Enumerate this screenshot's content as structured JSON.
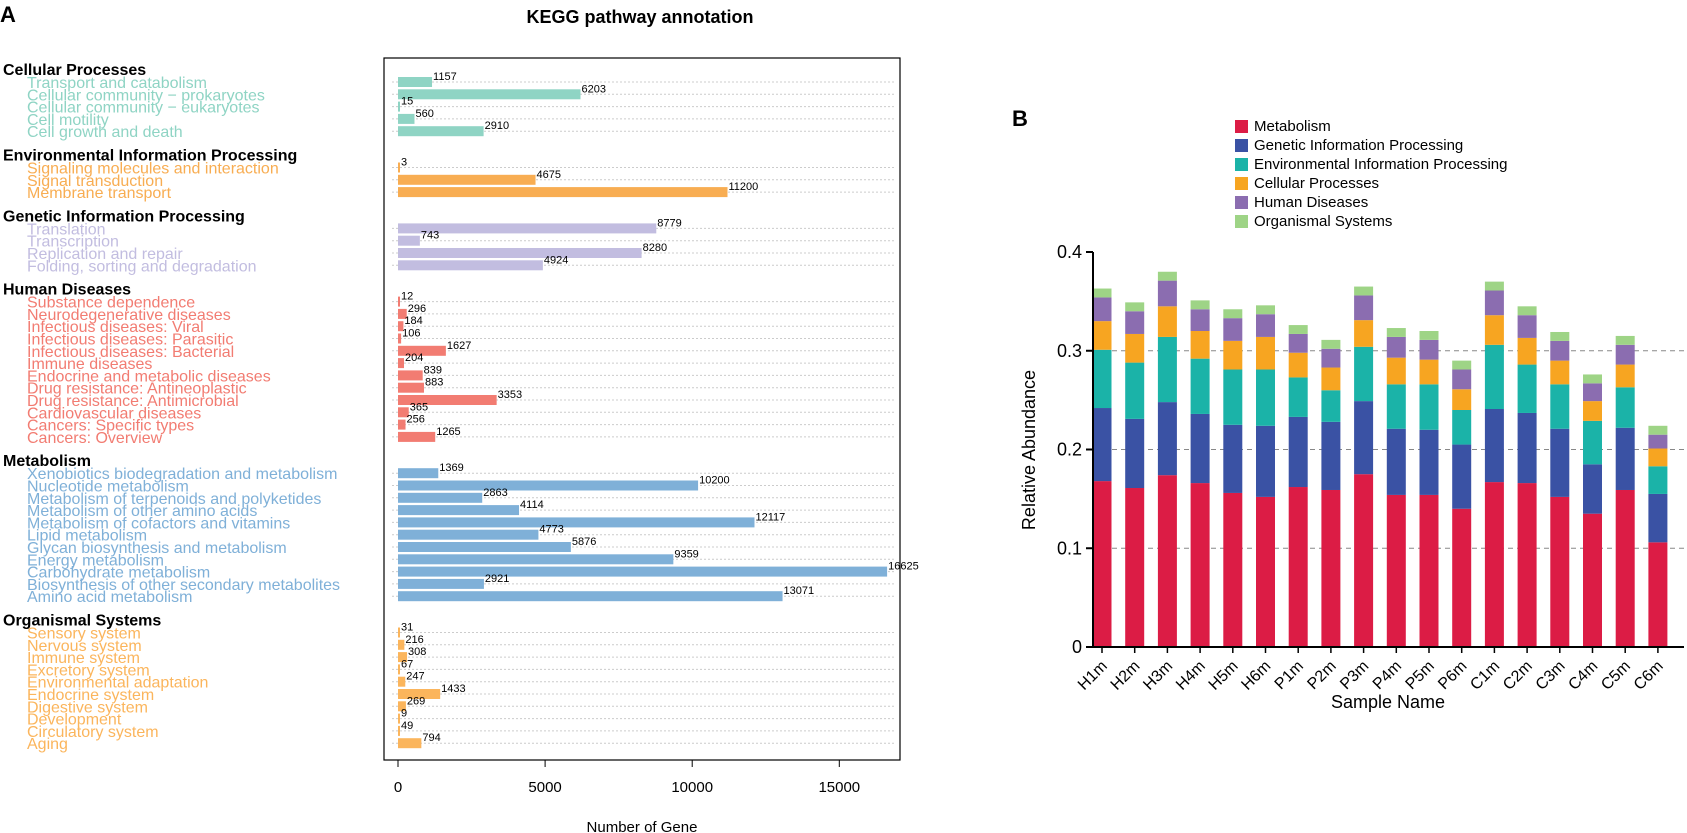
{
  "chart_data": [
    {
      "type": "bar",
      "orientation": "horizontal",
      "panel_label": "A",
      "title": "KEGG pathway annotation",
      "xlabel": "Number of Gene",
      "xlim": [
        -500,
        17000
      ],
      "xticks": [
        "0",
        "5000",
        "10000",
        "15000"
      ],
      "xtick_values": [
        0,
        5000,
        10000,
        15000
      ],
      "groups": [
        {
          "name": "Cellular Processes",
          "color": "#8fd4c4",
          "items": [
            {
              "label": "Transport and catabolism",
              "value": 1157
            },
            {
              "label": "Cellular community − prokaryotes",
              "value": 6203
            },
            {
              "label": "Cellular community − eukaryotes",
              "value": 15
            },
            {
              "label": "Cell motility",
              "value": 560
            },
            {
              "label": "Cell growth and death",
              "value": 2910
            }
          ]
        },
        {
          "name": "Environmental Information Processing",
          "color": "#f8ad52",
          "items": [
            {
              "label": "Signaling molecules and interaction",
              "value": 3
            },
            {
              "label": "Signal transduction",
              "value": 4675
            },
            {
              "label": "Membrane transport",
              "value": 11200
            }
          ]
        },
        {
          "name": "Genetic Information Processing",
          "color": "#c2bde0",
          "items": [
            {
              "label": "Translation",
              "value": 8779
            },
            {
              "label": "Transcription",
              "value": 743
            },
            {
              "label": "Replication and repair",
              "value": 8280
            },
            {
              "label": "Folding, sorting and degradation",
              "value": 4924
            }
          ]
        },
        {
          "name": "Human Diseases",
          "color": "#f27c72",
          "items": [
            {
              "label": "Substance dependence",
              "value": 12
            },
            {
              "label": "Neurodegenerative diseases",
              "value": 296
            },
            {
              "label": "Infectious diseases: Viral",
              "value": 184
            },
            {
              "label": "Infectious diseases: Parasitic",
              "value": 106
            },
            {
              "label": "Infectious diseases: Bacterial",
              "value": 1627
            },
            {
              "label": "Immune diseases",
              "value": 204
            },
            {
              "label": "Endocrine and metabolic diseases",
              "value": 839
            },
            {
              "label": "Drug resistance: Antineoplastic",
              "value": 883
            },
            {
              "label": "Drug resistance: Antimicrobial",
              "value": 3353
            },
            {
              "label": "Cardiovascular diseases",
              "value": 365
            },
            {
              "label": "Cancers: Specific types",
              "value": 256
            },
            {
              "label": "Cancers: Overview",
              "value": 1265
            }
          ]
        },
        {
          "name": "Metabolism",
          "color": "#7fb0d8",
          "items": [
            {
              "label": "Xenobiotics biodegradation and metabolism",
              "value": 1369
            },
            {
              "label": "Nucleotide metabolism",
              "value": 10200
            },
            {
              "label": "Metabolism of terpenoids and polyketides",
              "value": 2863
            },
            {
              "label": "Metabolism of other amino acids",
              "value": 4114
            },
            {
              "label": "Metabolism of cofactors and vitamins",
              "value": 12117
            },
            {
              "label": "Lipid metabolism",
              "value": 4773
            },
            {
              "label": "Glycan biosynthesis and metabolism",
              "value": 5876
            },
            {
              "label": "Energy metabolism",
              "value": 9359
            },
            {
              "label": "Carbohydrate metabolism",
              "value": 16625
            },
            {
              "label": "Biosynthesis of other secondary metabolites",
              "value": 2921
            },
            {
              "label": "Amino acid metabolism",
              "value": 13071
            }
          ]
        },
        {
          "name": "Organismal Systems",
          "color": "#fbb55c",
          "items": [
            {
              "label": "Sensory system",
              "value": 31
            },
            {
              "label": "Nervous system",
              "value": 216
            },
            {
              "label": "Immune system",
              "value": 308
            },
            {
              "label": "Excretory system",
              "value": 67
            },
            {
              "label": "Environmental adaptation",
              "value": 247
            },
            {
              "label": "Endocrine system",
              "value": 1433
            },
            {
              "label": "Digestive system",
              "value": 269
            },
            {
              "label": "Development",
              "value": 9
            },
            {
              "label": "Circulatory system",
              "value": 49
            },
            {
              "label": "Aging",
              "value": 794
            }
          ]
        }
      ]
    },
    {
      "type": "stacked_bar",
      "panel_label": "B",
      "title": "",
      "xlabel": "Sample Name",
      "ylabel": "Relative Abundance",
      "ylim": [
        0,
        0.4
      ],
      "yticks": [
        "0",
        "0.1",
        "0.2",
        "0.3",
        "0.4"
      ],
      "ytick_values": [
        0,
        0.1,
        0.2,
        0.3,
        0.4
      ],
      "categories": [
        "H1m",
        "H2m",
        "H3m",
        "H4m",
        "H5m",
        "H6m",
        "P1m",
        "P2m",
        "P3m",
        "P4m",
        "P5m",
        "P6m",
        "C1m",
        "C2m",
        "C3m",
        "C4m",
        "C5m",
        "C6m"
      ],
      "series": [
        {
          "name": "Metabolism",
          "color": "#dc1c45",
          "values": [
            0.168,
            0.161,
            0.174,
            0.166,
            0.156,
            0.152,
            0.162,
            0.159,
            0.175,
            0.154,
            0.154,
            0.14,
            0.167,
            0.166,
            0.152,
            0.135,
            0.159,
            0.106
          ]
        },
        {
          "name": "Genetic Information Processing",
          "color": "#3a52a4",
          "values": [
            0.074,
            0.07,
            0.074,
            0.07,
            0.069,
            0.072,
            0.071,
            0.069,
            0.074,
            0.067,
            0.066,
            0.065,
            0.074,
            0.071,
            0.069,
            0.05,
            0.063,
            0.049
          ]
        },
        {
          "name": "Environmental Information Processing",
          "color": "#1bb3a8",
          "values": [
            0.059,
            0.057,
            0.066,
            0.056,
            0.056,
            0.057,
            0.04,
            0.032,
            0.055,
            0.045,
            0.046,
            0.035,
            0.065,
            0.049,
            0.045,
            0.044,
            0.041,
            0.028
          ]
        },
        {
          "name": "Cellular Processes",
          "color": "#f7a521",
          "values": [
            0.029,
            0.029,
            0.031,
            0.028,
            0.029,
            0.033,
            0.025,
            0.023,
            0.027,
            0.027,
            0.025,
            0.021,
            0.03,
            0.027,
            0.024,
            0.02,
            0.023,
            0.018
          ]
        },
        {
          "name": "Human Diseases",
          "color": "#8b6db0",
          "values": [
            0.024,
            0.023,
            0.026,
            0.022,
            0.023,
            0.023,
            0.019,
            0.019,
            0.025,
            0.021,
            0.02,
            0.02,
            0.025,
            0.023,
            0.02,
            0.018,
            0.02,
            0.014
          ]
        },
        {
          "name": "Organismal Systems",
          "color": "#9ed486",
          "values": [
            0.009,
            0.009,
            0.009,
            0.009,
            0.009,
            0.009,
            0.009,
            0.009,
            0.009,
            0.009,
            0.009,
            0.009,
            0.009,
            0.009,
            0.009,
            0.009,
            0.009,
            0.009
          ]
        }
      ]
    }
  ]
}
